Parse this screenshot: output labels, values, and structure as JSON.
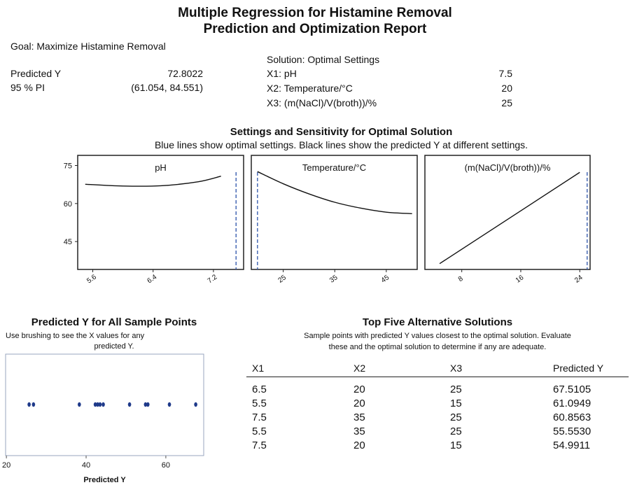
{
  "report": {
    "title_line1": "Multiple Regression for Histamine Removal",
    "title_line2": "Prediction and Optimization Report",
    "goal": "Goal: Maximize Histamine Removal",
    "predicted_label": "Predicted Y",
    "predicted_value": "72.8022",
    "pi_label": "95 % PI",
    "pi_value": "(61.054, 84.551)",
    "solution_heading": "Solution: Optimal Settings",
    "settings": [
      {
        "label": "X1: pH",
        "value": "7.5"
      },
      {
        "label": "X2: Temperature/°C",
        "value": "20"
      },
      {
        "label": "X3: (m(NaCl)/V(broth))/%",
        "value": "25"
      }
    ]
  },
  "sensitivity": {
    "title": "Settings and Sensitivity for Optimal Solution",
    "subtitle": "Blue lines show optimal settings. Black lines show the predicted Y at different settings."
  },
  "chart_data": [
    {
      "type": "line",
      "title": "pH",
      "x": [
        5.5,
        6.0,
        6.5,
        7.0,
        7.3
      ],
      "y": [
        67.6,
        66.9,
        67.0,
        68.6,
        70.8
      ],
      "xticks": [
        "5.6",
        "6.4",
        "7.2"
      ],
      "xtick_values": [
        5.6,
        6.4,
        7.2
      ],
      "xlim": [
        5.4,
        7.6
      ],
      "ylim": [
        34,
        79
      ],
      "yticks": [
        45,
        60,
        75
      ],
      "optimal_x": 7.5
    },
    {
      "type": "line",
      "title": "Temperature/°C",
      "x": [
        20,
        25,
        30,
        35,
        40,
        45,
        50
      ],
      "y": [
        72.6,
        67.8,
        63.8,
        60.5,
        58.2,
        56.6,
        56.0
      ],
      "xticks": [
        "25",
        "35",
        "45"
      ],
      "xtick_values": [
        25,
        35,
        45
      ],
      "xlim": [
        18.8,
        51.0
      ],
      "ylim": [
        34,
        79
      ],
      "optimal_x": 20
    },
    {
      "type": "line",
      "title": "(m(NaCl)/V(broth))/%",
      "x": [
        5,
        24
      ],
      "y": [
        36.3,
        72.3
      ],
      "xticks": [
        "8",
        "16",
        "24"
      ],
      "xtick_values": [
        8,
        16,
        24
      ],
      "xlim": [
        3.0,
        25.4
      ],
      "ylim": [
        34,
        79
      ],
      "optimal_x": 25
    },
    {
      "type": "scatter",
      "title": "Predicted Y for All Sample Points",
      "xlabel": "Predicted Y",
      "xticks": [
        "20",
        "40",
        "60"
      ],
      "xtick_values": [
        20,
        40,
        60
      ],
      "xlim": [
        19.8,
        69.5
      ],
      "values": [
        25.7,
        26.8,
        38.3,
        42.3,
        42.9,
        43.5,
        44.3,
        50.9,
        54.9,
        55.5,
        60.9,
        67.5
      ]
    },
    {
      "type": "table",
      "title": "Top Five Alternative Solutions",
      "columns": [
        "X1",
        "X2",
        "X3",
        "Predicted Y"
      ],
      "rows": [
        [
          "6.5",
          "20",
          "25",
          "67.5105"
        ],
        [
          "5.5",
          "20",
          "15",
          "61.0949"
        ],
        [
          "7.5",
          "35",
          "25",
          "60.8563"
        ],
        [
          "5.5",
          "35",
          "25",
          "55.5530"
        ],
        [
          "7.5",
          "20",
          "15",
          "54.9911"
        ]
      ]
    }
  ],
  "scatter_panel": {
    "title": "Predicted Y for All Sample Points",
    "note_line1": "Use brushing to see the X values for any",
    "note_line2": "predicted Y."
  },
  "alternatives_panel": {
    "title": "Top Five Alternative Solutions",
    "note_line1": "Sample points with predicted Y values closest to the optimal solution. Evaluate",
    "note_line2": "these and the optimal solution to determine if any are adequate."
  },
  "colors": {
    "optimal_line": "#3a5fb0",
    "curve": "#111111",
    "points": "#1f3a8a",
    "frame": "#222222",
    "scatter_frame": "#9aa6bf"
  }
}
